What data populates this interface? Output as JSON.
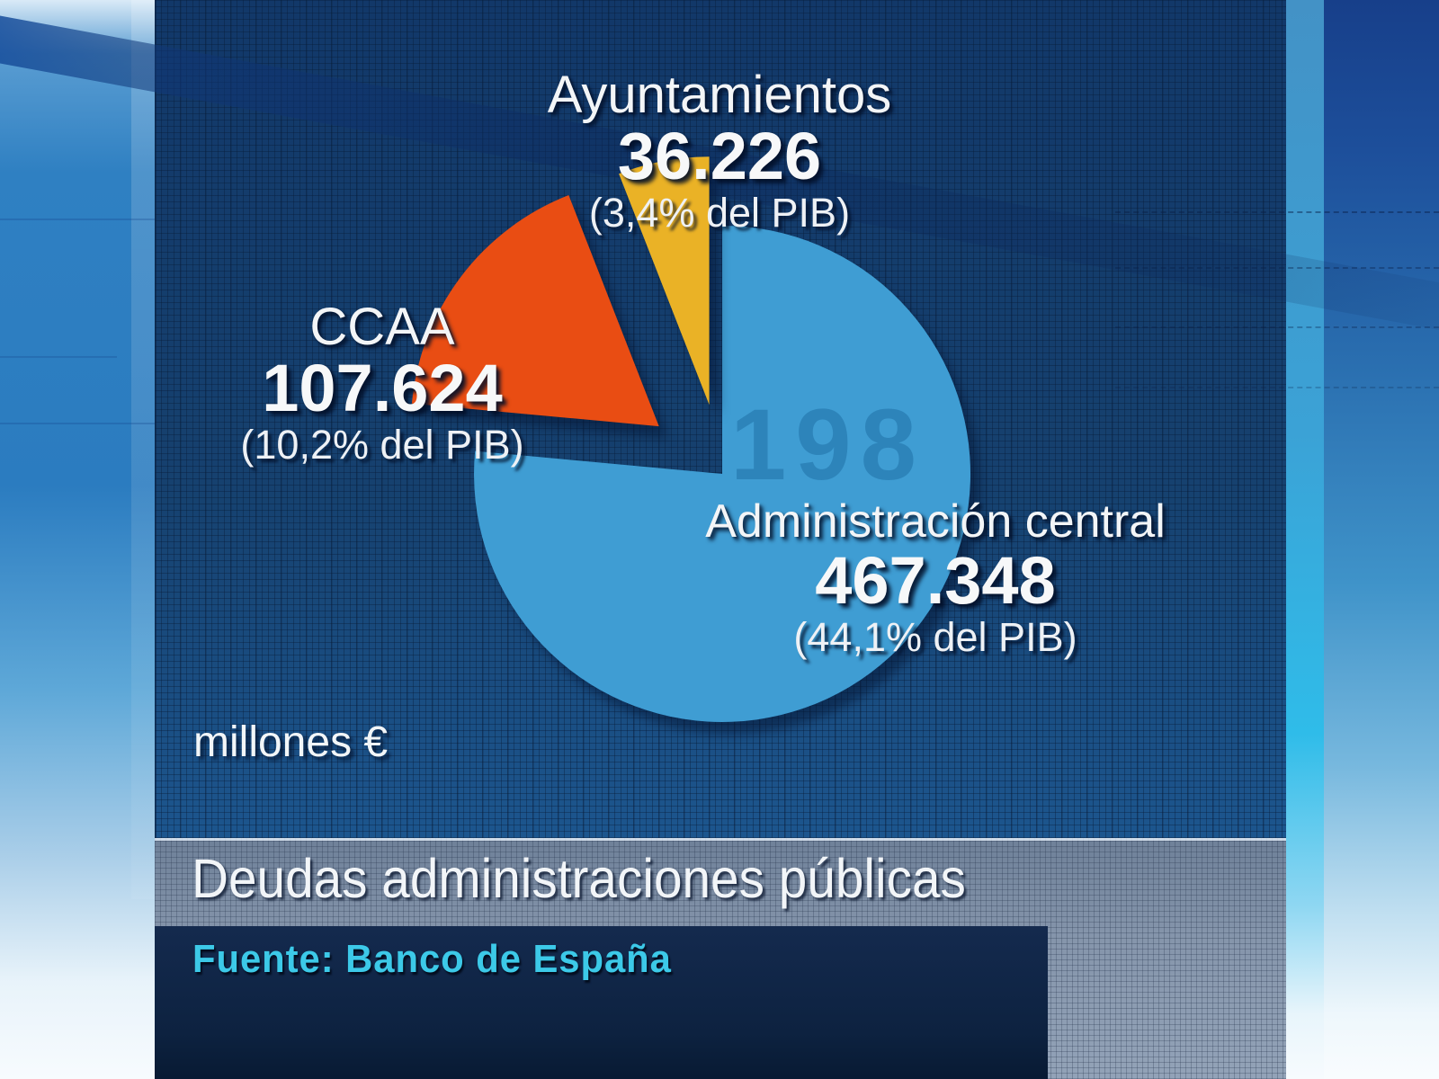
{
  "chart_data": {
    "type": "pie",
    "title": "Deudas administraciones públicas",
    "source": "Fuente: Banco de España",
    "units_label": "millones €",
    "start_angle_deg_from_top": 0,
    "direction": "clockwise",
    "legend_position": "labels-adjacent",
    "slices": [
      {
        "label": "Administración central",
        "value": 467348,
        "display_value": "467.348",
        "pct_label": "(44,1% del PIB)",
        "color": "#3f9dd3"
      },
      {
        "label": "CCAA",
        "value": 107624,
        "display_value": "107.624",
        "pct_label": "(10,2% del PIB)",
        "color": "#e94d13"
      },
      {
        "label": "Ayuntamientos",
        "value": 36226,
        "display_value": "36.226",
        "pct_label": "(3,4% del PIB)",
        "color": "#eab226"
      }
    ]
  },
  "watermark": {
    "text": "198"
  },
  "palette": {
    "panel_navy": "#16416f",
    "title_strip_gray": "#8595ab",
    "source_bar_navy": "#0d2240",
    "source_text_cyan": "#3cc9e8",
    "label_text": "#f3f5f7"
  }
}
